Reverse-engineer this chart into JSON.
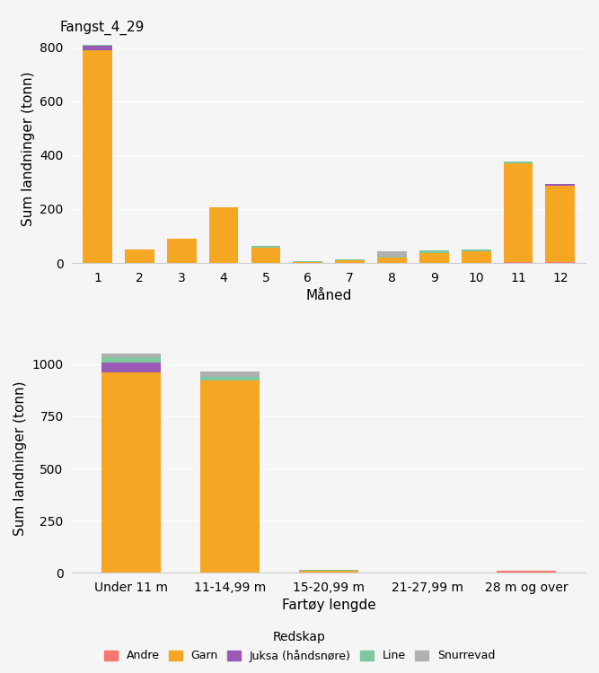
{
  "title": "Fangst_4_29",
  "ylabel": "Sum landninger (tonn)",
  "xlabel1": "Måned",
  "xlabel2": "Fartøy lengde",
  "months": [
    1,
    2,
    3,
    4,
    5,
    6,
    7,
    8,
    9,
    10,
    11,
    12
  ],
  "month_data": {
    "Andre": [
      0,
      0,
      0,
      0,
      0,
      0,
      0,
      0,
      0,
      0,
      3,
      5
    ],
    "Garn": [
      790,
      50,
      90,
      205,
      58,
      5,
      10,
      20,
      38,
      42,
      368,
      283
    ],
    "Juksa": [
      15,
      0,
      0,
      3,
      0,
      0,
      0,
      0,
      0,
      0,
      0,
      5
    ],
    "Line": [
      5,
      0,
      0,
      0,
      4,
      3,
      3,
      5,
      8,
      8,
      5,
      0
    ],
    "Snurrevad": [
      0,
      0,
      0,
      0,
      0,
      0,
      0,
      18,
      0,
      0,
      0,
      0
    ]
  },
  "vessel_categories": [
    "Under 11 m",
    "11-14,99 m",
    "15-20,99 m",
    "21-27,99 m",
    "28 m og over"
  ],
  "vessel_data": {
    "Andre": [
      0,
      0,
      0,
      0,
      10
    ],
    "Garn": [
      960,
      920,
      10,
      0,
      0
    ],
    "Juksa": [
      50,
      0,
      0,
      0,
      0
    ],
    "Line": [
      25,
      20,
      3,
      0,
      0
    ],
    "Snurrevad": [
      15,
      25,
      0,
      0,
      0
    ]
  },
  "colors": {
    "Andre": "#f8766d",
    "Garn": "#f5a623",
    "Juksa": "#9b59b6",
    "Line": "#7ec8a0",
    "Snurrevad": "#b0b0b0"
  },
  "legend_title": "Redskap",
  "ylim1": [
    0,
    850
  ],
  "ylim2": [
    0,
    1100
  ],
  "background_color": "#f5f5f5",
  "grid_color": "#ffffff"
}
